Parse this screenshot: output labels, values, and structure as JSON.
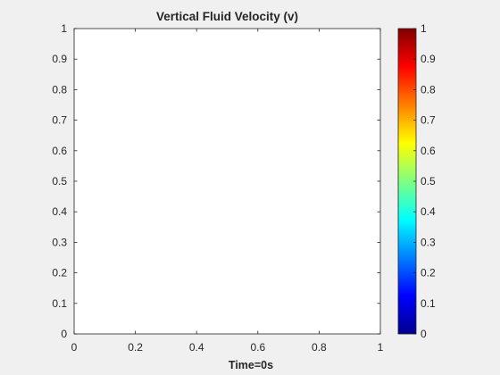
{
  "chart_data": {
    "type": "heatmap",
    "title": "Vertical Fluid Velocity (v)",
    "xlabel": "Time=0s",
    "ylabel": "",
    "xlim": [
      0,
      1
    ],
    "ylim": [
      0,
      1
    ],
    "x_ticks": [
      0,
      0.2,
      0.4,
      0.6,
      0.8,
      1
    ],
    "x_tick_labels": [
      "0",
      "0.2",
      "0.4",
      "0.6",
      "0.8",
      "1"
    ],
    "y_ticks": [
      0,
      0.1,
      0.2,
      0.3,
      0.4,
      0.5,
      0.6,
      0.7,
      0.8,
      0.9,
      1
    ],
    "y_tick_labels": [
      "0",
      "0.1",
      "0.2",
      "0.3",
      "0.4",
      "0.5",
      "0.6",
      "0.7",
      "0.8",
      "0.9",
      "1"
    ],
    "grid": false,
    "values": [],
    "colorbar": {
      "colormap": "jet",
      "clim": [
        0,
        1
      ],
      "ticks": [
        0,
        0.1,
        0.2,
        0.3,
        0.4,
        0.5,
        0.6,
        0.7,
        0.8,
        0.9,
        1
      ],
      "tick_labels": [
        "0",
        "0.1",
        "0.2",
        "0.3",
        "0.4",
        "0.5",
        "0.6",
        "0.7",
        "0.8",
        "0.9",
        "1"
      ],
      "location": "right"
    },
    "colors": {
      "figure_background": "#f0f0f0",
      "axes_background": "#ffffff",
      "axis_color": "#262626"
    }
  }
}
